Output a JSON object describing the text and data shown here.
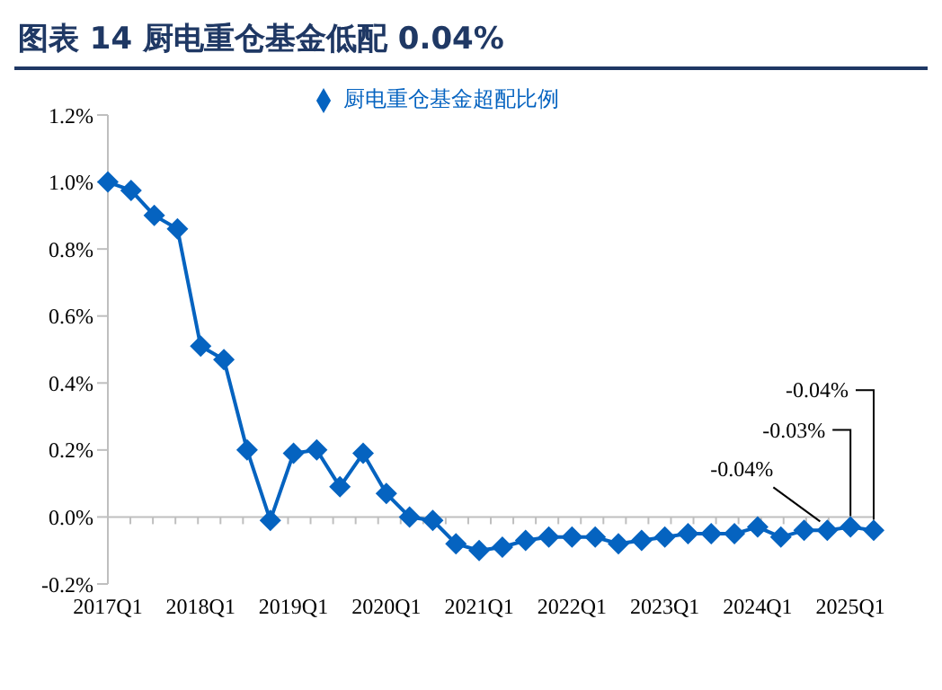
{
  "chart_data": {
    "type": "line",
    "title": "图表 14   厨电重仓基金低配 0.04%",
    "categories": [
      "2017Q1",
      null,
      null,
      null,
      "2018Q1",
      null,
      null,
      null,
      "2019Q1",
      null,
      null,
      null,
      "2020Q1",
      null,
      null,
      null,
      "2021Q1",
      null,
      null,
      null,
      "2022Q1",
      null,
      null,
      null,
      "2023Q1",
      null,
      null,
      null,
      "2024Q1",
      null,
      null,
      null,
      "2025Q1",
      null
    ],
    "series": [
      {
        "name": "厨电重仓基金超配比例",
        "color": "#0563c0",
        "values": [
          1.0,
          0.975,
          0.9,
          0.86,
          0.51,
          0.47,
          0.2,
          -0.01,
          0.19,
          0.2,
          0.09,
          0.19,
          0.07,
          0.0,
          -0.01,
          -0.08,
          -0.1,
          -0.09,
          -0.07,
          -0.06,
          -0.06,
          -0.06,
          -0.08,
          -0.07,
          -0.06,
          -0.05,
          -0.05,
          -0.05,
          -0.03,
          -0.06,
          -0.04,
          -0.04,
          -0.03,
          -0.04
        ],
        "value_labels": [
          null,
          null,
          null,
          null,
          null,
          null,
          null,
          null,
          null,
          null,
          null,
          null,
          null,
          null,
          null,
          null,
          null,
          null,
          null,
          null,
          null,
          null,
          null,
          null,
          null,
          null,
          null,
          null,
          null,
          null,
          null,
          "-0.04%",
          "-0.03%",
          "-0.04%"
        ]
      }
    ],
    "ylim": [
      -0.2,
      1.2
    ],
    "yticks": [
      {
        "value": -0.2,
        "label": "-0.2%"
      },
      {
        "value": 0,
        "label": "0.0%"
      },
      {
        "value": 0.2,
        "label": "0.2%"
      },
      {
        "value": 0.4,
        "label": "0.4%"
      },
      {
        "value": 0.6,
        "label": "0.6%"
      },
      {
        "value": 0.8,
        "label": "0.8%"
      },
      {
        "value": 1.0,
        "label": "1.0%"
      },
      {
        "value": 1.2,
        "label": "1.2%"
      }
    ],
    "legend": "top",
    "marker": "diamond",
    "line_style": "solid"
  }
}
